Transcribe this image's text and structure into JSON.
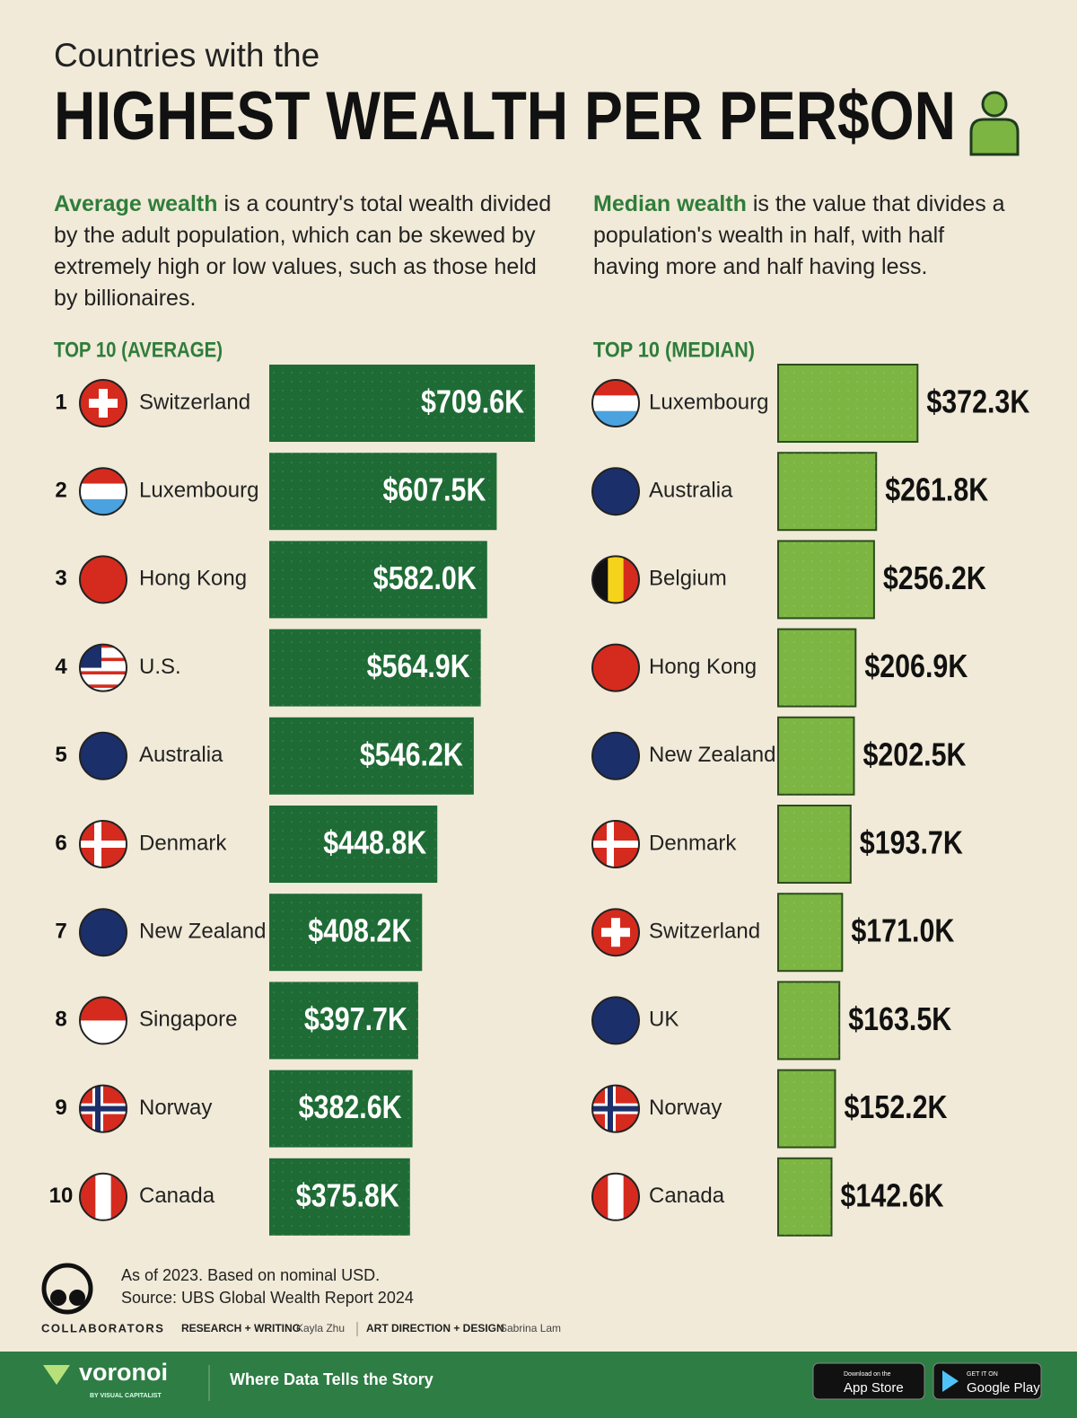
{
  "header": {
    "subtitle": "Countries with the",
    "title": "HIGHEST WEALTH PER PER$ON"
  },
  "intro": {
    "average": {
      "term": "Average wealth",
      "text": "is a country's total wealth divided by the adult population, which can be skewed by extremely high or low values, such as those held by billionaires."
    },
    "median": {
      "term": "Median wealth",
      "text": "is the value that divides a population's wealth in half, with half having more and half having less."
    }
  },
  "chart_data": [
    {
      "type": "bar",
      "title": "TOP 10 (AVERAGE)",
      "ranks": [
        1,
        2,
        3,
        4,
        5,
        6,
        7,
        8,
        9,
        10
      ],
      "categories": [
        "Switzerland",
        "Luxembourg",
        "Hong Kong",
        "U.S.",
        "Australia",
        "Denmark",
        "New Zealand",
        "Singapore",
        "Norway",
        "Canada"
      ],
      "values": [
        709.6,
        607.5,
        582.0,
        564.9,
        546.2,
        448.8,
        408.2,
        397.7,
        382.6,
        375.8
      ],
      "value_labels": [
        "$709.6K",
        "$607.5K",
        "$582.0K",
        "$564.9K",
        "$546.2K",
        "$448.8K",
        "$408.2K",
        "$397.7K",
        "$382.6K",
        "$375.8K"
      ],
      "color": "#1e6b35",
      "label_position": "inside"
    },
    {
      "type": "bar",
      "title": "TOP 10 (MEDIAN)",
      "categories": [
        "Luxembourg",
        "Australia",
        "Belgium",
        "Hong Kong",
        "New Zealand",
        "Denmark",
        "Switzerland",
        "UK",
        "Norway",
        "Canada"
      ],
      "values": [
        372.3,
        261.8,
        256.2,
        206.9,
        202.5,
        193.7,
        171.0,
        163.5,
        152.2,
        142.6
      ],
      "value_labels": [
        "$372.3K",
        "$261.8K",
        "$256.2K",
        "$206.9K",
        "$202.5K",
        "$193.7K",
        "$171.0K",
        "$163.5K",
        "$152.2K",
        "$142.6K"
      ],
      "color": "#7db543",
      "label_position": "outside"
    }
  ],
  "footer": {
    "note": "As of 2023. Based on nominal USD.",
    "source": "Source: UBS Global Wealth Report 2024",
    "collaborators": "COLLABORATORS",
    "research_label": "RESEARCH + WRITING",
    "research": "Kayla Zhu",
    "design_label": "ART DIRECTION + DESIGN",
    "design": "Sabrina Lam"
  },
  "brand": {
    "name": "voronoi",
    "byline": "BY VISUAL CAPITALIST",
    "tagline": "Where Data Tells the Story",
    "app_store_small": "Download on the",
    "app_store": "App Store",
    "google_small": "GET IT ON",
    "google": "Google Play"
  }
}
